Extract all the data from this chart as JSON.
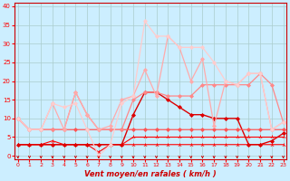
{
  "x": [
    0,
    1,
    2,
    3,
    4,
    5,
    6,
    7,
    8,
    9,
    10,
    11,
    12,
    13,
    14,
    15,
    16,
    17,
    18,
    19,
    20,
    21,
    22,
    23
  ],
  "series": [
    {
      "color": "#ff0000",
      "alpha": 1.0,
      "linewidth": 0.8,
      "marker": "2",
      "markersize": 3,
      "values": [
        3,
        3,
        3,
        3,
        3,
        3,
        3,
        1,
        3,
        3,
        3,
        3,
        3,
        3,
        3,
        3,
        3,
        3,
        3,
        3,
        3,
        3,
        3,
        3
      ]
    },
    {
      "color": "#ff0000",
      "alpha": 1.0,
      "linewidth": 0.8,
      "marker": "2",
      "markersize": 3,
      "values": [
        3,
        3,
        3,
        4,
        3,
        3,
        3,
        3,
        3,
        3,
        5,
        5,
        5,
        5,
        5,
        5,
        5,
        5,
        5,
        5,
        5,
        5,
        5,
        5
      ]
    },
    {
      "color": "#dd0000",
      "alpha": 1.0,
      "linewidth": 1.0,
      "marker": "D",
      "markersize": 2,
      "values": [
        3,
        3,
        3,
        3,
        3,
        3,
        3,
        3,
        3,
        3,
        11,
        17,
        17,
        15,
        13,
        11,
        11,
        10,
        10,
        10,
        3,
        3,
        4,
        6
      ]
    },
    {
      "color": "#ff5555",
      "alpha": 1.0,
      "linewidth": 0.9,
      "marker": "D",
      "markersize": 2,
      "values": [
        10,
        7,
        7,
        7,
        7,
        7,
        7,
        7,
        7,
        7,
        7,
        7,
        7,
        7,
        7,
        7,
        7,
        7,
        7,
        7,
        7,
        7,
        7,
        7
      ]
    },
    {
      "color": "#ff8888",
      "alpha": 1.0,
      "linewidth": 0.9,
      "marker": "D",
      "markersize": 2,
      "values": [
        10,
        7,
        7,
        7,
        7,
        17,
        11,
        7,
        7,
        7,
        15,
        17,
        17,
        16,
        16,
        16,
        19,
        19,
        19,
        19,
        19,
        22,
        19,
        9
      ]
    },
    {
      "color": "#ffaaaa",
      "alpha": 1.0,
      "linewidth": 0.9,
      "marker": "D",
      "markersize": 2,
      "values": [
        10,
        7,
        7,
        14,
        7,
        17,
        11,
        7,
        8,
        15,
        16,
        23,
        16,
        32,
        29,
        20,
        26,
        8,
        20,
        19,
        22,
        22,
        7,
        9
      ]
    },
    {
      "color": "#ffcccc",
      "alpha": 1.0,
      "linewidth": 0.9,
      "marker": "D",
      "markersize": 2,
      "values": [
        10,
        7,
        7,
        14,
        13,
        14,
        7,
        0,
        3,
        14,
        16,
        36,
        32,
        32,
        29,
        29,
        29,
        25,
        20,
        19,
        22,
        22,
        7,
        9
      ]
    }
  ],
  "xlabel": "Vent moyen/en rafales ( km/h )",
  "xlim": [
    -0.3,
    23.3
  ],
  "ylim": [
    -1,
    41
  ],
  "yticks": [
    0,
    5,
    10,
    15,
    20,
    25,
    30,
    35,
    40
  ],
  "xticks": [
    0,
    1,
    2,
    3,
    4,
    5,
    6,
    7,
    8,
    9,
    10,
    11,
    12,
    13,
    14,
    15,
    16,
    17,
    18,
    19,
    20,
    21,
    22,
    23
  ],
  "bg_color": "#cceeff",
  "grid_color": "#aacccc",
  "tick_color": "#ff0000",
  "label_color": "#cc0000",
  "spine_color": "#cc0000",
  "arrow_color": "#cc0000"
}
